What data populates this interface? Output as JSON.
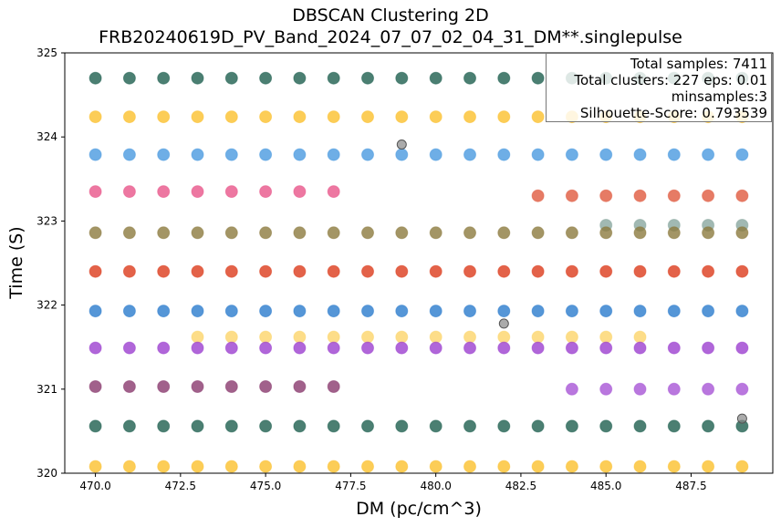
{
  "chart_data": {
    "type": "scatter",
    "title": "DBSCAN Clustering 2D",
    "subtitle": "FRB20240619D_PV_Band_2024_07_07_02_04_31_DM**.singlepulse",
    "xlabel": "DM (pc/cm^3)",
    "ylabel": "Time (S)",
    "xlim": [
      469.1,
      489.9
    ],
    "ylim": [
      320,
      325
    ],
    "xticks": [
      470.0,
      472.5,
      475.0,
      477.5,
      480.0,
      482.5,
      485.0,
      487.5
    ],
    "xtick_labels": [
      "470.0",
      "472.5",
      "475.0",
      "477.5",
      "480.0",
      "482.5",
      "485.0",
      "487.5"
    ],
    "yticks": [
      320,
      321,
      322,
      323,
      324,
      325
    ],
    "ytick_labels": [
      "320",
      "321",
      "322",
      "323",
      "324",
      "325"
    ],
    "grid": false,
    "annotation": {
      "lines": [
        "Total samples: 7411",
        "Total clusters: 227 eps: 0.01",
        "minsamples:3",
        "Silhouette-Score: 0.793539"
      ],
      "placement": "top-right"
    },
    "dm_values": [
      470,
      471,
      472,
      473,
      474,
      475,
      476,
      477,
      478,
      479,
      480,
      481,
      482,
      483,
      484,
      485,
      486,
      487,
      488,
      489
    ],
    "rows": [
      {
        "color": "#1e5f4f",
        "time": 324.7,
        "dm_from": 470,
        "dm_to": 489
      },
      {
        "color": "#fbc02d",
        "time": 324.24,
        "dm_from": 470,
        "dm_to": 489
      },
      {
        "color": "#4a9ae0",
        "time": 323.79,
        "dm_from": 470,
        "dm_to": 489
      },
      {
        "color": "#e8558a",
        "time": 323.35,
        "dm_from": 470,
        "dm_to": 477
      },
      {
        "color": "#e05a3f",
        "time": 323.3,
        "dm_from": 483,
        "dm_to": 489
      },
      {
        "color": "#8aa8a0",
        "time": 322.95,
        "dm_from": 485,
        "dm_to": 489
      },
      {
        "color": "#8c7a3e",
        "time": 322.86,
        "dm_from": 470,
        "dm_to": 489
      },
      {
        "color": "#dc3b1c",
        "time": 322.4,
        "dm_from": 470,
        "dm_to": 489
      },
      {
        "color": "#2b7ccd",
        "time": 321.93,
        "dm_from": 470,
        "dm_to": 489
      },
      {
        "color": "#fcd56a",
        "time": 321.62,
        "dm_from": 473,
        "dm_to": 486
      },
      {
        "color": "#9c40d0",
        "time": 321.49,
        "dm_from": 470,
        "dm_to": 489
      },
      {
        "color": "#8a3a6e",
        "time": 321.03,
        "dm_from": 470,
        "dm_to": 477
      },
      {
        "color": "#a855d6",
        "time": 321.0,
        "dm_from": 484,
        "dm_to": 489
      },
      {
        "color": "#1e5f4f",
        "time": 320.56,
        "dm_from": 470,
        "dm_to": 489
      },
      {
        "color": "#fbc02d",
        "time": 320.08,
        "dm_from": 470,
        "dm_to": 489
      }
    ],
    "noise_points": [
      {
        "dm": 479,
        "time": 323.91,
        "color": "#888888"
      },
      {
        "dm": 482,
        "time": 321.78,
        "color": "#888888"
      },
      {
        "dm": 489,
        "time": 320.65,
        "color": "#888888"
      }
    ]
  }
}
